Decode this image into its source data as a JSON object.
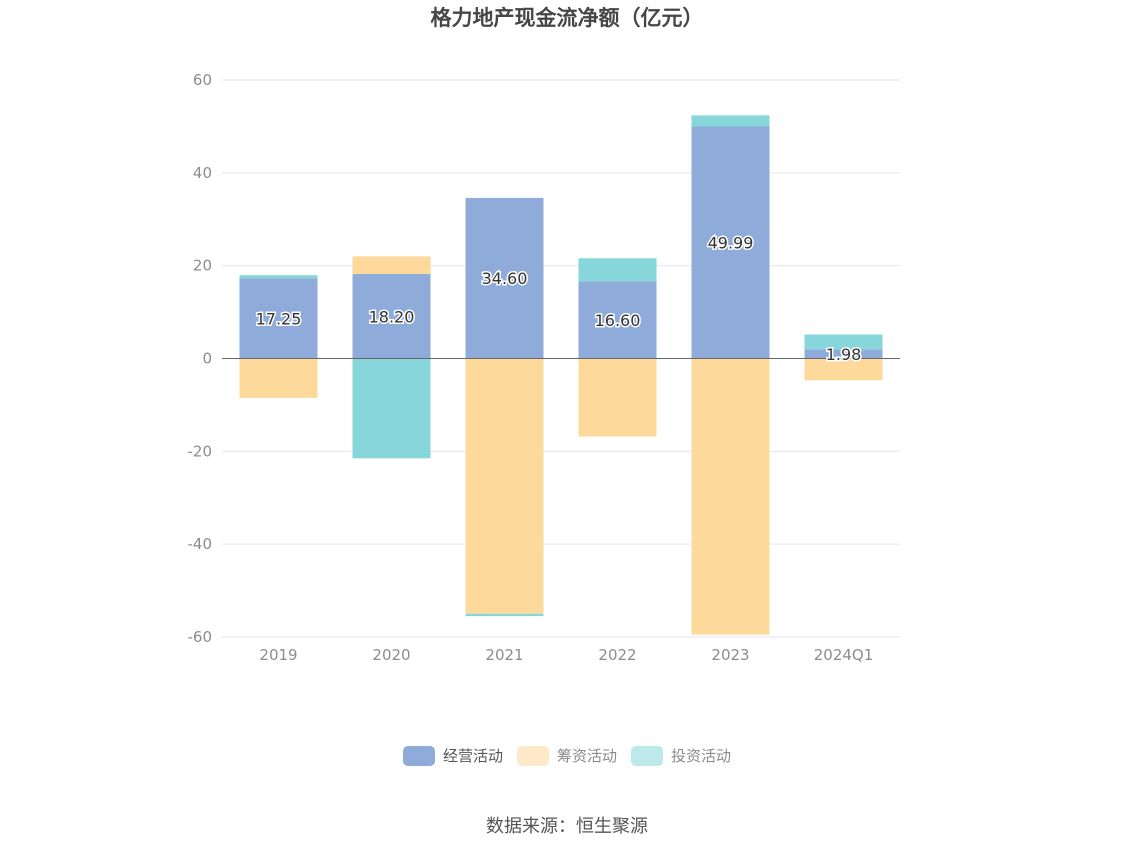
{
  "title": "格力地产现金流净额（亿元）",
  "source": "数据来源：恒生聚源",
  "colors": {
    "operating": "#8eabd9",
    "financing": "#fdd99c",
    "investing": "#87d7da",
    "axis": "#666666",
    "grid": "#e3e6f0"
  },
  "chart_data": {
    "type": "bar",
    "stacked": true,
    "title": "格力地产现金流净额（亿元）",
    "xlabel": "",
    "ylabel": "",
    "ylim": [
      -60,
      60
    ],
    "yticks": [
      60,
      40,
      20,
      0,
      -20,
      -40,
      -60
    ],
    "grid": true,
    "legend_position": "bottom",
    "categories": [
      "2019",
      "2020",
      "2021",
      "2022",
      "2023",
      "2024Q1"
    ],
    "series": [
      {
        "name": "经营活动",
        "key": "operating",
        "values": [
          17.25,
          18.2,
          34.6,
          16.6,
          49.99,
          1.98
        ],
        "labels": [
          "17.25",
          "18.20",
          "34.60",
          "16.60",
          "49.99",
          "1.98"
        ]
      },
      {
        "name": "筹资活动",
        "key": "financing",
        "values": [
          -8.5,
          3.8,
          -55,
          -16.8,
          -59.5,
          -4.7
        ]
      },
      {
        "name": "投资活动",
        "key": "investing",
        "values": [
          0.7,
          -21.5,
          -0.5,
          5.0,
          2.4,
          3.2
        ]
      }
    ]
  }
}
